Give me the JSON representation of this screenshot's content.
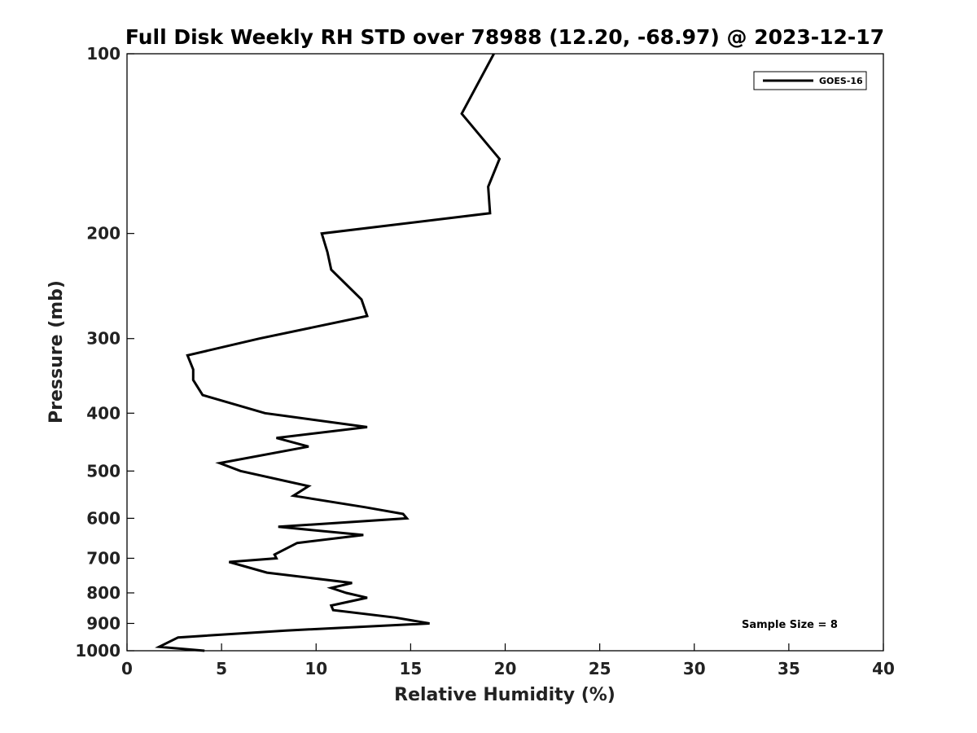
{
  "chart_data": {
    "type": "line",
    "title": "Full Disk Weekly RH STD over 78988 (12.20, -68.97) @ 2023-12-17",
    "xlabel": "Relative Humidity (%)",
    "ylabel": "Pressure (mb)",
    "xlim": [
      0,
      40
    ],
    "ylim": [
      100,
      1000
    ],
    "y_scale": "log",
    "y_reversed": true,
    "grid": false,
    "legend_position": "top-right",
    "x_ticks": [
      0,
      5,
      10,
      15,
      20,
      25,
      30,
      35,
      40
    ],
    "y_ticks": [
      100,
      200,
      300,
      400,
      500,
      600,
      700,
      800,
      900,
      1000
    ],
    "annotation": "Sample Size = 8",
    "series": [
      {
        "name": "GOES-16",
        "color": "#000000",
        "x": [
          19.4,
          17.7,
          19.7,
          19.1,
          19.2,
          10.3,
          10.6,
          10.8,
          12.4,
          12.7,
          7.0,
          3.2,
          3.5,
          3.5,
          4.0,
          7.3,
          12.7,
          7.9,
          9.6,
          4.9,
          6.0,
          9.6,
          8.8,
          12.6,
          14.6,
          14.8,
          8.0,
          12.5,
          9.0,
          7.8,
          7.9,
          5.4,
          7.4,
          11.9,
          10.8,
          11.6,
          12.7,
          10.8,
          10.9,
          14.2,
          16.0,
          8.4,
          2.7,
          1.7,
          4.1
        ],
        "y": [
          100,
          126,
          150,
          167,
          185,
          200,
          215,
          230,
          258,
          275,
          300,
          320,
          338,
          352,
          373,
          400,
          422,
          440,
          455,
          485,
          500,
          530,
          550,
          575,
          590,
          600,
          620,
          640,
          660,
          690,
          700,
          710,
          740,
          770,
          785,
          800,
          815,
          840,
          855,
          880,
          900,
          925,
          950,
          985,
          1000
        ]
      }
    ]
  }
}
